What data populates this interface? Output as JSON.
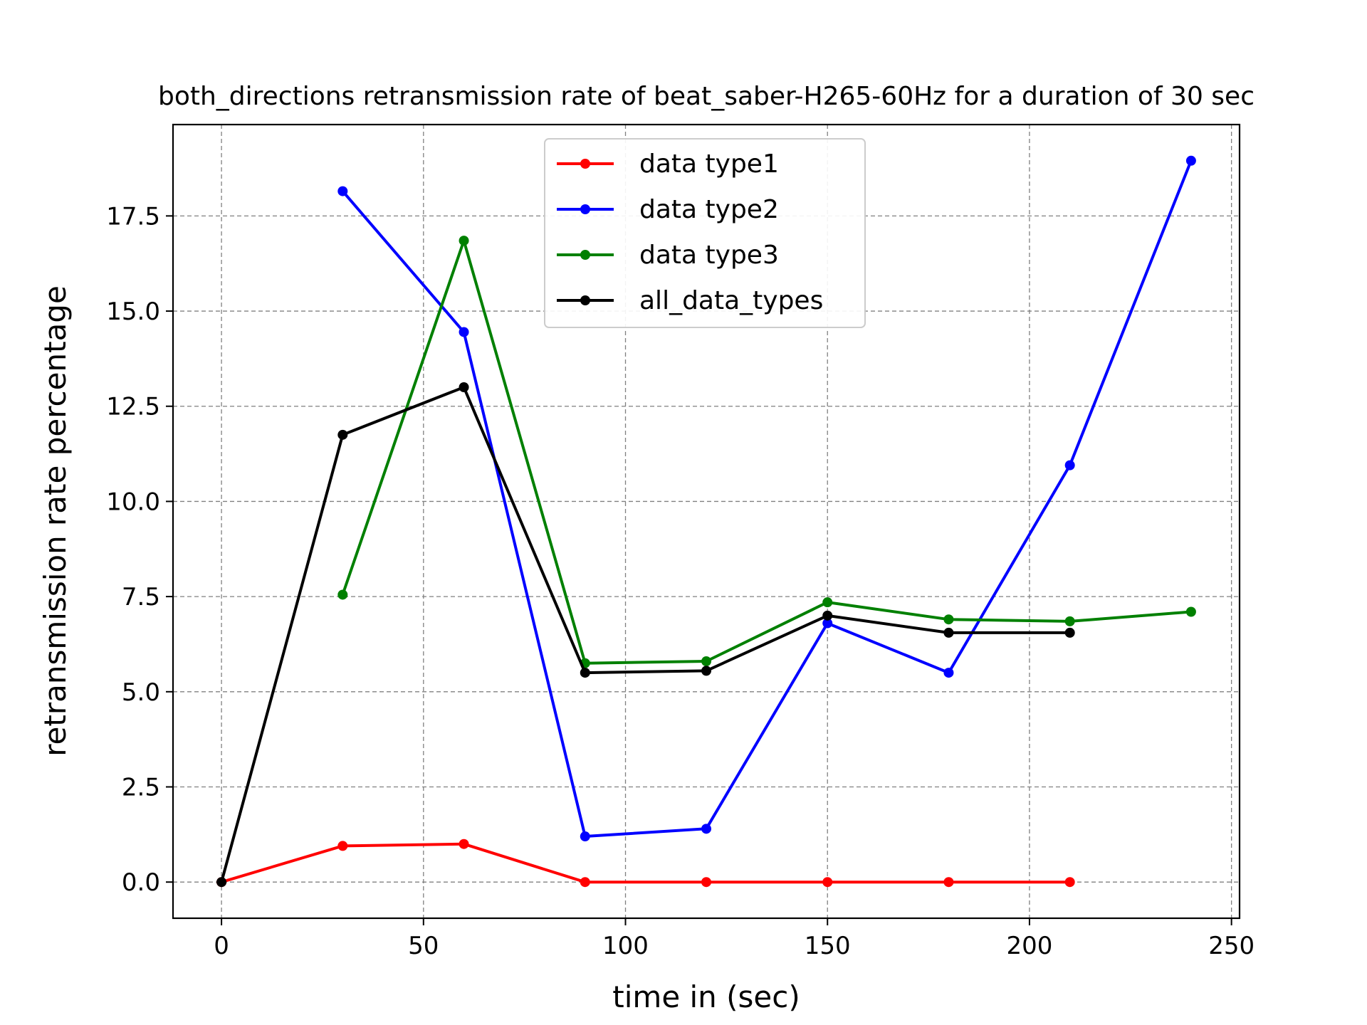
{
  "chart_data": {
    "type": "line",
    "title": "both_directions retransmission rate of beat_saber-H265-60Hz for a duration of 30 sec",
    "xlabel": "time in (sec)",
    "ylabel": "retransmission rate percentage",
    "xlim": [
      -12,
      252
    ],
    "ylim": [
      -0.95,
      19.9
    ],
    "x_ticks": [
      0,
      50,
      100,
      150,
      200,
      250
    ],
    "x_tick_labels": [
      "0",
      "50",
      "100",
      "150",
      "200",
      "250"
    ],
    "y_ticks": [
      0,
      2.5,
      5,
      7.5,
      10,
      12.5,
      15,
      17.5
    ],
    "y_tick_labels": [
      "0.0",
      "2.5",
      "5.0",
      "7.5",
      "10.0",
      "12.5",
      "15.0",
      "17.5"
    ],
    "grid": true,
    "legend_position": "top-center",
    "series": [
      {
        "name": "data type1",
        "color": "#ff0000",
        "x": [
          0,
          30,
          60,
          90,
          120,
          150,
          180,
          210
        ],
        "y": [
          0.0,
          0.95,
          1.0,
          0.0,
          0.0,
          0.0,
          0.0,
          0.0
        ]
      },
      {
        "name": "data type2",
        "color": "#0000ff",
        "x": [
          30,
          60,
          90,
          120,
          150,
          180,
          210,
          240
        ],
        "y": [
          18.15,
          14.45,
          1.2,
          1.4,
          6.8,
          5.5,
          10.95,
          18.95
        ]
      },
      {
        "name": "data type3",
        "color": "#008000",
        "x": [
          30,
          60,
          90,
          120,
          150,
          180,
          210,
          240
        ],
        "y": [
          7.55,
          16.85,
          5.75,
          5.8,
          7.35,
          6.9,
          6.85,
          7.1
        ]
      },
      {
        "name": "all_data_types",
        "color": "#000000",
        "x": [
          0,
          30,
          60,
          90,
          120,
          150,
          180,
          210
        ],
        "y": [
          0.0,
          11.75,
          13.0,
          5.5,
          5.55,
          7.0,
          6.55,
          6.55
        ]
      }
    ]
  }
}
